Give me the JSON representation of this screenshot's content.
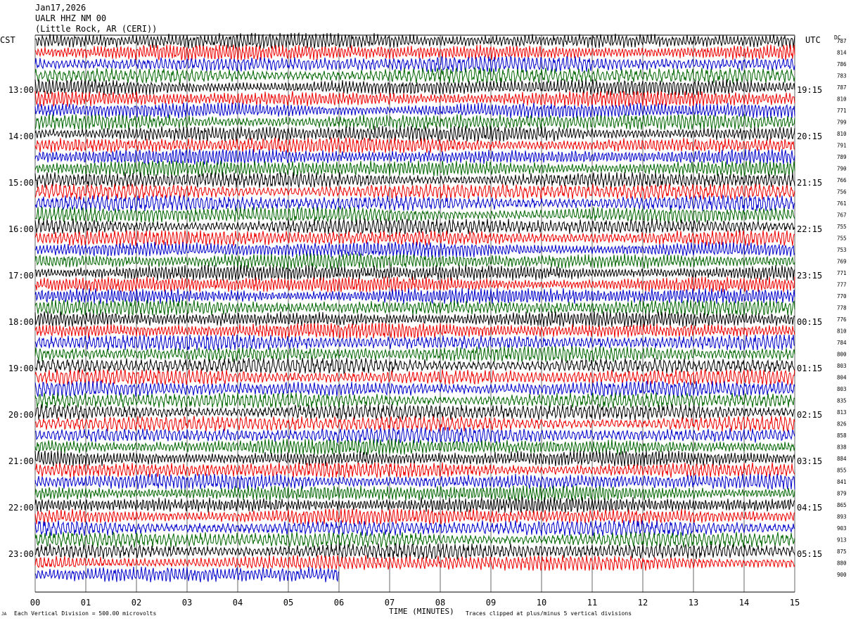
{
  "header": {
    "date": "Jan17,2026",
    "station": "UALR HHZ NM 00",
    "location": "(Little Rock, AR (CERI))"
  },
  "left_timezone": "CST",
  "right_timezone": "UTC",
  "dc_label": "DC",
  "footer": {
    "scale": "Each Vertical Division =  500.00 microvolts",
    "clip": "Traces clipped at plus/minus 5 vertical divisions",
    "corner_mark": "JA"
  },
  "colors": {
    "trace_cycle": [
      "#000000",
      "#ee0000",
      "#0000cc",
      "#006600"
    ],
    "grid": "#000000"
  },
  "chart_data": {
    "type": "line",
    "title": "UALR HHZ NM 00",
    "xlabel": "TIME (MINUTES)",
    "xlim": [
      0,
      15
    ],
    "x_ticks": [
      "00",
      "01",
      "02",
      "03",
      "04",
      "05",
      "06",
      "07",
      "08",
      "09",
      "10",
      "11",
      "12",
      "13",
      "14",
      "15"
    ],
    "left_hour_labels": [
      {
        "row": 4,
        "label": "13:00"
      },
      {
        "row": 8,
        "label": "14:00"
      },
      {
        "row": 12,
        "label": "15:00"
      },
      {
        "row": 16,
        "label": "16:00"
      },
      {
        "row": 20,
        "label": "17:00"
      },
      {
        "row": 24,
        "label": "18:00"
      },
      {
        "row": 28,
        "label": "19:00"
      },
      {
        "row": 32,
        "label": "20:00"
      },
      {
        "row": 36,
        "label": "21:00"
      },
      {
        "row": 40,
        "label": "22:00"
      },
      {
        "row": 44,
        "label": "23:00"
      }
    ],
    "right_hour_labels": [
      {
        "row": 4,
        "label": "19:15"
      },
      {
        "row": 8,
        "label": "20:15"
      },
      {
        "row": 12,
        "label": "21:15"
      },
      {
        "row": 16,
        "label": "22:15"
      },
      {
        "row": 20,
        "label": "23:15"
      },
      {
        "row": 24,
        "label": "00:15"
      },
      {
        "row": 28,
        "label": "01:15"
      },
      {
        "row": 32,
        "label": "02:15"
      },
      {
        "row": 36,
        "label": "03:15"
      },
      {
        "row": 40,
        "label": "04:15"
      },
      {
        "row": 44,
        "label": "05:15"
      }
    ],
    "dc_offsets": [
      787,
      814,
      786,
      783,
      787,
      810,
      771,
      799,
      810,
      791,
      789,
      790,
      766,
      756,
      761,
      767,
      755,
      755,
      753,
      769,
      771,
      777,
      770,
      778,
      776,
      810,
      784,
      800,
      803,
      804,
      803,
      835,
      813,
      826,
      858,
      838,
      884,
      855,
      841,
      879,
      865,
      893,
      903,
      913,
      875,
      880,
      900
    ],
    "last_trace_end_minute": 6.0,
    "clip_divisions": 5,
    "scale_microvolts_per_division": 500.0
  }
}
